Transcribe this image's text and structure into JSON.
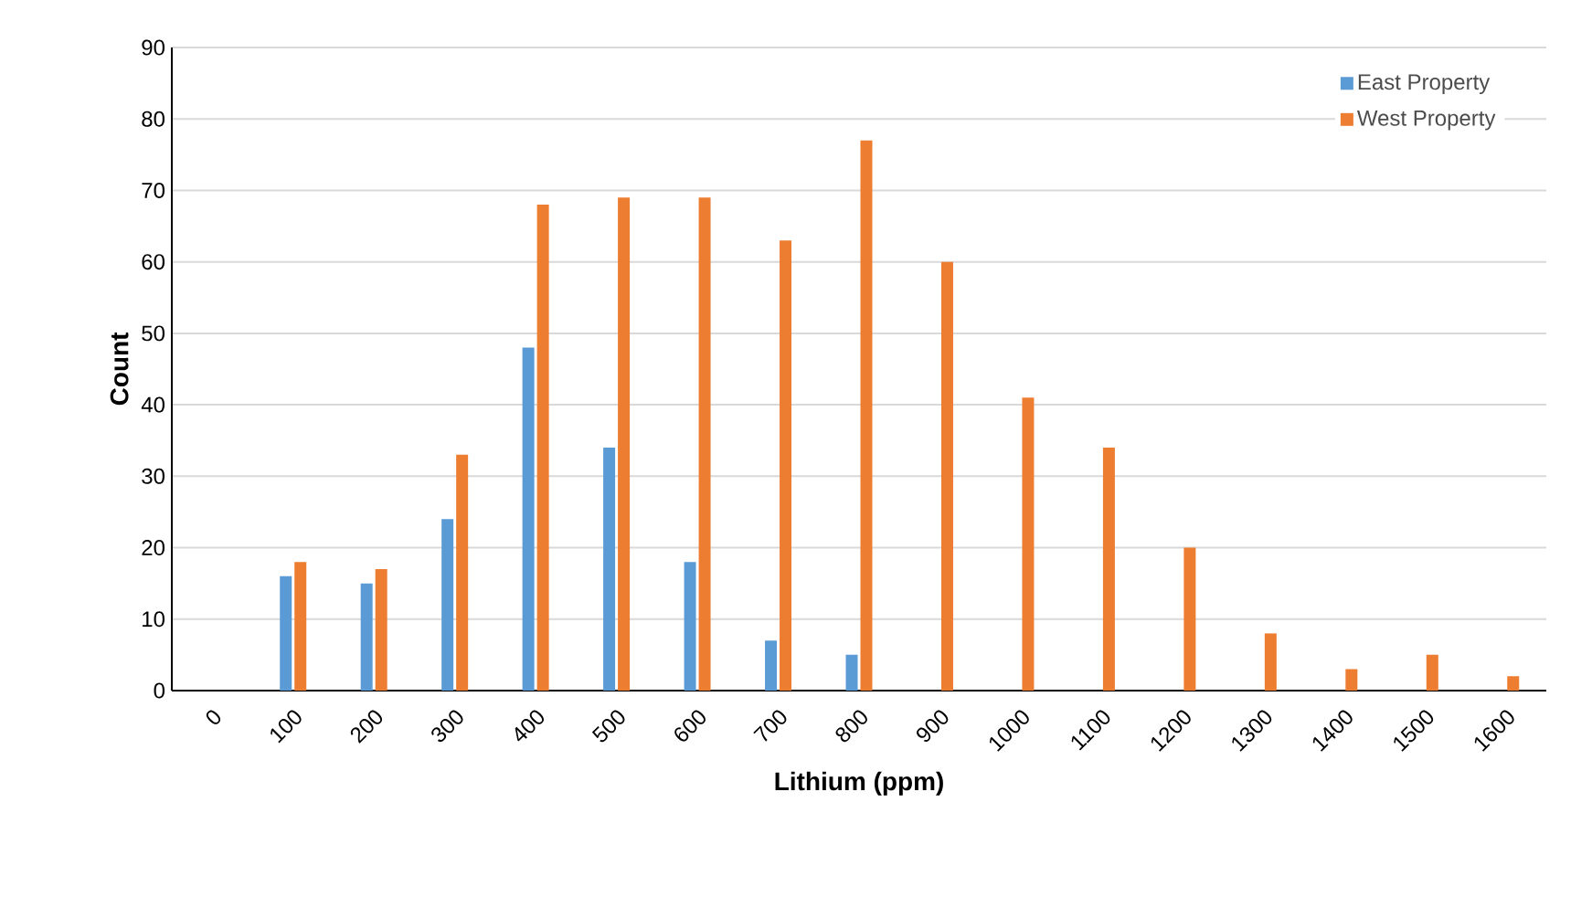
{
  "chart_data": {
    "type": "bar",
    "xlabel": "Lithium (ppm)",
    "ylabel": "Count",
    "categories": [
      "0",
      "100",
      "200",
      "300",
      "400",
      "500",
      "600",
      "700",
      "800",
      "900",
      "1000",
      "1100",
      "1200",
      "1300",
      "1400",
      "1500",
      "1600"
    ],
    "series": [
      {
        "name": "East Property",
        "color": "#5b9bd5",
        "values": [
          null,
          16,
          15,
          24,
          48,
          34,
          18,
          7,
          5,
          null,
          null,
          null,
          null,
          null,
          null,
          null,
          null
        ]
      },
      {
        "name": "West Property",
        "color": "#ed7d31",
        "values": [
          null,
          18,
          17,
          33,
          68,
          69,
          69,
          63,
          77,
          60,
          41,
          34,
          20,
          8,
          3,
          5,
          2
        ]
      }
    ],
    "ylim": [
      0,
      90
    ],
    "yticks": [
      0,
      10,
      20,
      30,
      40,
      50,
      60,
      70,
      80,
      90
    ],
    "grid": "y",
    "legend": "top right"
  }
}
